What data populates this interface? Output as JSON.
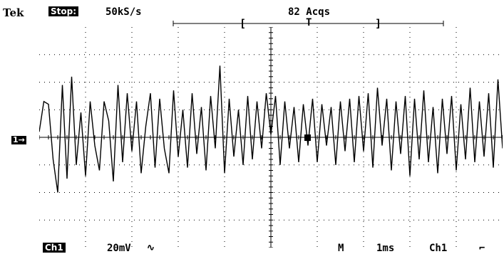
{
  "header": {
    "brand": "Tek",
    "status": "Stop:",
    "sample_rate": "50kS/s",
    "acquisitions": "82 Acqs",
    "record_left": "[",
    "trigger_marker": "T",
    "record_right": "]"
  },
  "channel_marker": "1→",
  "footer": {
    "channel": "Ch1",
    "volts_per_div": "20mV",
    "coupling_symbol": "∿",
    "mode": "M",
    "time_per_div": "1ms",
    "trigger_source": "Ch1",
    "trigger_slope_symbol": "⌐"
  },
  "chart_data": {
    "type": "line",
    "title": "",
    "xlabel": "",
    "ylabel": "",
    "xlim": [
      0,
      10
    ],
    "ylim": [
      -4,
      4
    ],
    "grid": true,
    "divisions": {
      "x": 10,
      "y": 8
    },
    "series": [
      {
        "values_x": [
          0.0,
          0.1,
          0.2,
          0.3,
          0.4,
          0.5,
          0.6,
          0.7,
          0.8,
          0.9,
          1.0,
          1.1,
          1.2,
          1.3,
          1.4,
          1.5,
          1.6,
          1.7,
          1.8,
          1.9,
          2.0,
          2.1,
          2.2,
          2.3,
          2.4,
          2.5,
          2.6,
          2.7,
          2.8,
          2.9,
          3.0,
          3.1,
          3.2,
          3.3,
          3.4,
          3.5,
          3.6,
          3.7,
          3.8,
          3.9,
          4.0,
          4.1,
          4.2,
          4.3,
          4.4,
          4.5,
          4.6,
          4.7,
          4.8,
          4.9,
          5.0,
          5.1,
          5.2,
          5.3,
          5.4,
          5.5,
          5.6,
          5.7,
          5.8,
          5.9,
          6.0,
          6.1,
          6.2,
          6.3,
          6.4,
          6.5,
          6.6,
          6.7,
          6.8,
          6.9,
          7.0,
          7.1,
          7.2,
          7.3,
          7.4,
          7.5,
          7.6,
          7.7,
          7.8,
          7.9,
          8.0,
          8.1,
          8.2,
          8.3,
          8.4,
          8.5,
          8.6,
          8.7,
          8.8,
          8.9,
          9.0,
          9.1,
          9.2,
          9.3,
          9.4,
          9.5,
          9.6,
          9.7,
          9.8,
          9.9,
          10.0
        ],
        "values_y": [
          0.2,
          1.3,
          1.2,
          -0.8,
          -2.0,
          1.9,
          -1.5,
          2.2,
          -1.0,
          0.9,
          -1.4,
          1.3,
          -0.3,
          -1.2,
          1.3,
          0.6,
          -1.6,
          1.9,
          -0.9,
          1.6,
          -0.5,
          1.3,
          -1.3,
          0.4,
          1.6,
          -1.1,
          1.4,
          -0.4,
          -1.3,
          1.7,
          -0.7,
          1.0,
          -1.1,
          1.6,
          -0.6,
          1.1,
          -1.2,
          1.5,
          -0.4,
          2.6,
          -1.3,
          1.4,
          -0.7,
          1.0,
          -1.0,
          1.5,
          -0.8,
          1.3,
          -0.4,
          1.6,
          0.1,
          1.5,
          -1.0,
          1.3,
          -0.4,
          1.1,
          -0.9,
          1.2,
          -0.3,
          1.4,
          -0.9,
          1.2,
          -0.3,
          1.1,
          -1.0,
          1.3,
          -0.5,
          1.4,
          -0.9,
          1.5,
          -0.5,
          1.6,
          -1.1,
          1.8,
          -0.3,
          1.4,
          -1.2,
          1.3,
          -0.6,
          1.5,
          -1.4,
          1.4,
          -0.8,
          1.7,
          -0.9,
          1.1,
          -1.3,
          1.4,
          -0.6,
          1.5,
          -1.2,
          1.2,
          -0.8,
          1.8,
          -0.9,
          1.3,
          -0.7,
          1.6,
          -1.1,
          2.1,
          -0.4
        ]
      }
    ]
  }
}
